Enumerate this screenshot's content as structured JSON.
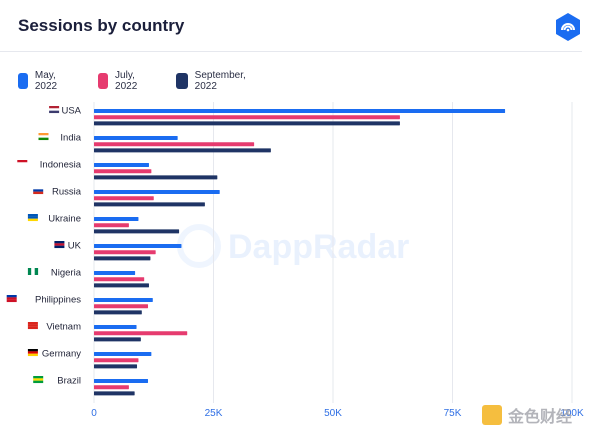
{
  "title": "Sessions by country",
  "logo_icon": "dappradar-logo-icon",
  "watermark_text": "DappRadar",
  "corner_watermark": "金色财经",
  "colors": {
    "may": "#1a6cf1",
    "july": "#e63b6f",
    "september": "#1f3465",
    "axis": "#e6e8ee",
    "tick_text": "#2f6fe4",
    "label_text": "#23263a"
  },
  "chart_data": {
    "type": "bar",
    "orientation": "horizontal",
    "title": "Sessions by country",
    "xlim": [
      0,
      100000
    ],
    "xticks": [
      0,
      25000,
      50000,
      75000,
      100000
    ],
    "xtick_labels": [
      "0",
      "25K",
      "50K",
      "75K",
      "100K"
    ],
    "grid": true,
    "legend_position": "top",
    "categories": [
      "USA",
      "India",
      "Indonesia",
      "Russia",
      "Ukraine",
      "UK",
      "Nigeria",
      "Philippines",
      "Vietnam",
      "Germany",
      "Brazil"
    ],
    "series": [
      {
        "name": "May, 2022",
        "color": "#1a6cf1",
        "values": [
          86000,
          17500,
          11500,
          26300,
          9300,
          18300,
          8600,
          12300,
          8900,
          12000,
          11300
        ]
      },
      {
        "name": "July, 2022",
        "color": "#e63b6f",
        "values": [
          64000,
          33500,
          12000,
          12500,
          7300,
          12900,
          10500,
          11300,
          19500,
          9300,
          7300
        ]
      },
      {
        "name": "September, 2022",
        "color": "#1f3465",
        "values": [
          64000,
          37000,
          25800,
          23200,
          17800,
          11800,
          11500,
          10000,
          9800,
          9000,
          8500
        ]
      }
    ]
  }
}
